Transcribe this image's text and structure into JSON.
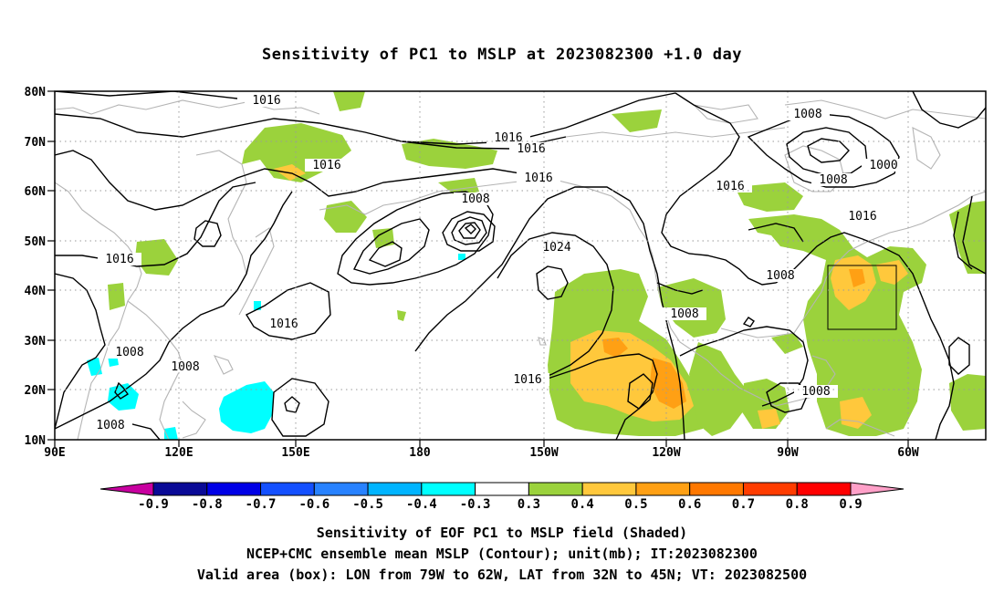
{
  "title": "Sensitivity of PC1 to MSLP at 2023082300 +1.0 day",
  "lat_labels": [
    "80N",
    "70N",
    "60N",
    "50N",
    "40N",
    "30N",
    "20N",
    "10N"
  ],
  "lon_labels": [
    "90E",
    "120E",
    "150E",
    "180",
    "150W",
    "120W",
    "90W",
    "60W"
  ],
  "contour_labels": [
    "1016",
    "1016",
    "1016",
    "1016",
    "1016",
    "1016",
    "1016",
    "1016",
    "1016",
    "1024",
    "1008",
    "1008",
    "1008",
    "1008",
    "1008",
    "1008",
    "1008",
    "1008",
    "1000"
  ],
  "colorbar": {
    "ticks": [
      "-0.9",
      "-0.8",
      "-0.7",
      "-0.6",
      "-0.5",
      "-0.4",
      "-0.3",
      "0.3",
      "0.4",
      "0.5",
      "0.6",
      "0.7",
      "0.8",
      "0.9"
    ],
    "colors": [
      "#c800a0",
      "#0a0a96",
      "#0000e6",
      "#1450ff",
      "#2882ff",
      "#00b4ff",
      "#00ffff",
      "#ffffff",
      "#9bd23c",
      "#ffc83c",
      "#ffa014",
      "#ff7800",
      "#ff3c00",
      "#ff0000",
      "#ffa0c8"
    ]
  },
  "captions": {
    "line1": "Sensitivity of EOF PC1 to MSLP field (Shaded)",
    "line2": "NCEP+CMC ensemble mean MSLP (Contour); unit(mb); IT:2023082300",
    "line3": "Valid area (box): LON from 79W to 62W, LAT from 32N to 45N; VT: 2023082500"
  },
  "colors": {
    "positive_low": "#9bd23c",
    "positive_mid": "#ffc83c",
    "positive_high": "#ffa014",
    "negative": "#00ffff",
    "coast": "#b4b4b4",
    "contour": "#000000"
  }
}
